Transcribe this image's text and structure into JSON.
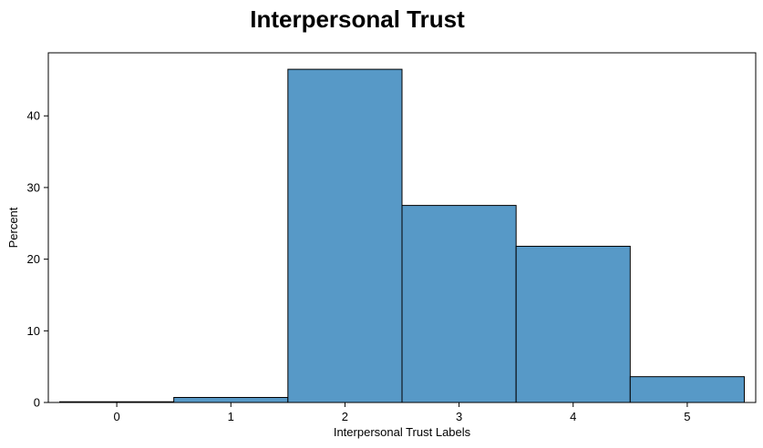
{
  "chart_data": {
    "type": "bar",
    "title": "Interpersonal Trust",
    "xlabel": "Interpersonal Trust Labels",
    "ylabel": "Percent",
    "categories": [
      "0",
      "1",
      "2",
      "3",
      "4",
      "5"
    ],
    "values": [
      0.1,
      0.7,
      46.5,
      27.5,
      21.8,
      3.6
    ],
    "xlim": [
      -0.6,
      5.6
    ],
    "ylim": [
      0,
      48.8
    ],
    "yticks": [
      0,
      10,
      20,
      30,
      40
    ],
    "bar_color": "#5799c7",
    "edge_color": "#000000",
    "grid": false
  }
}
